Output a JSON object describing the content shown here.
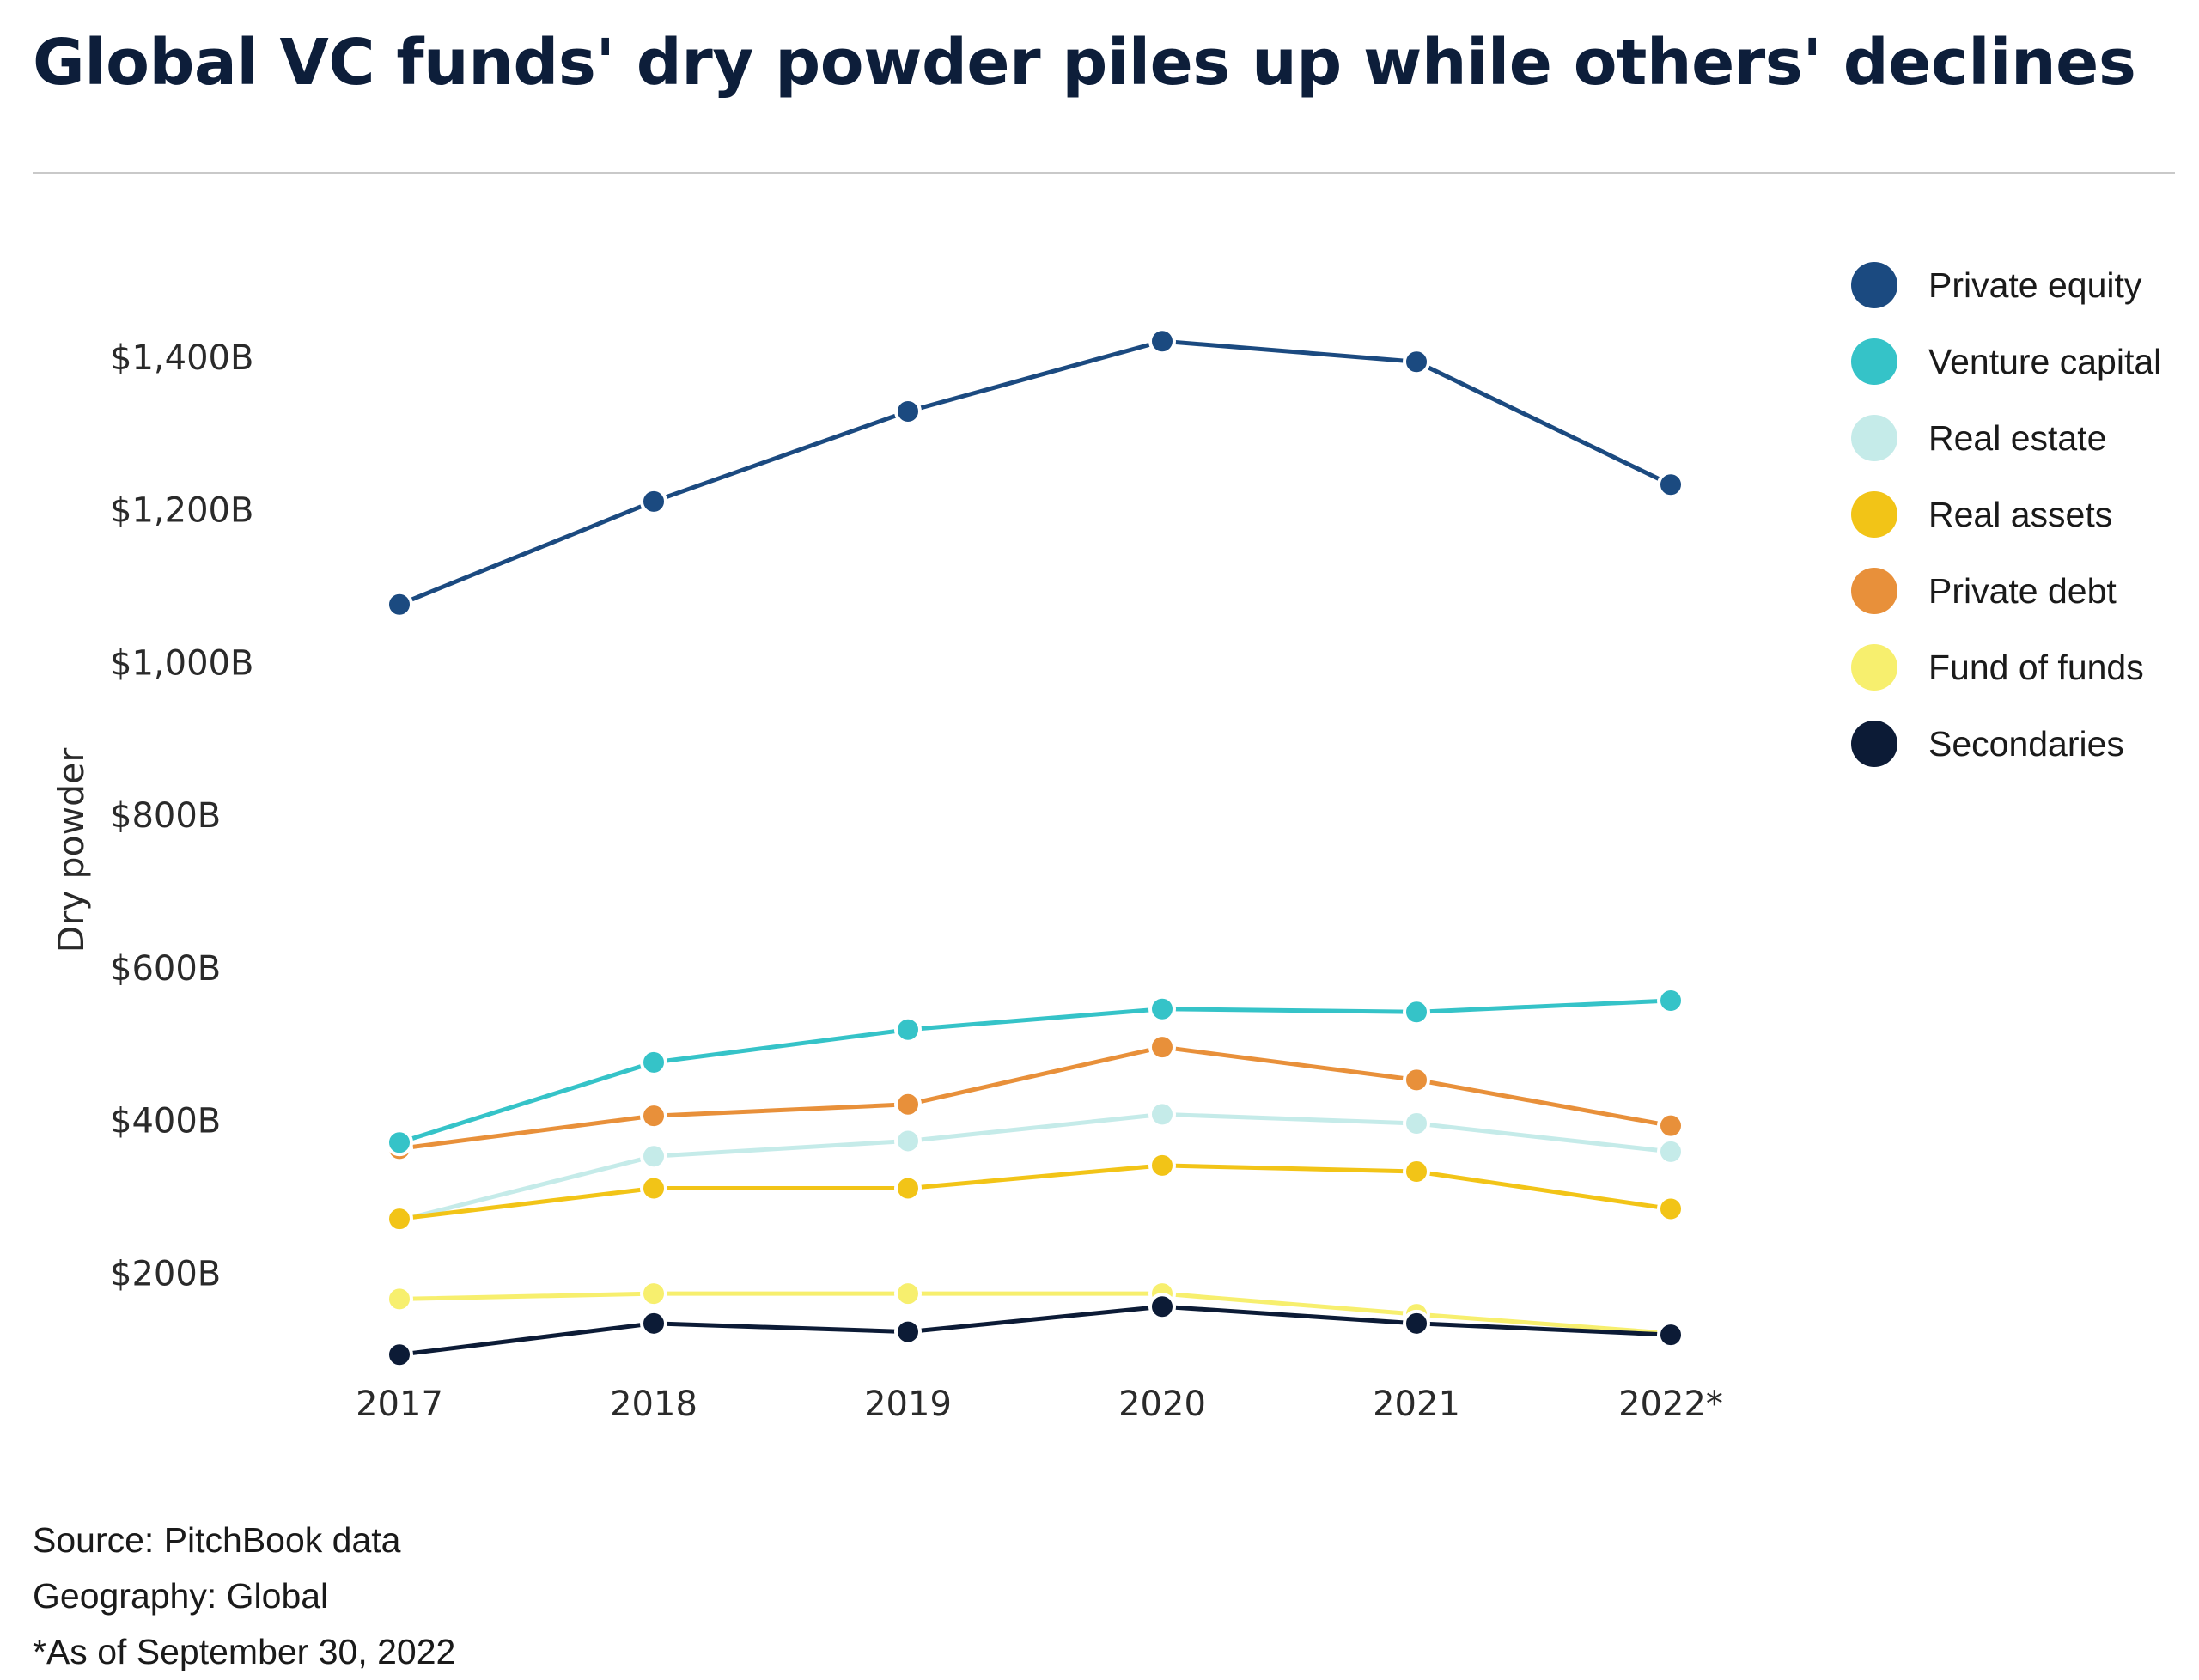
{
  "title": "Global VC funds' dry powder piles up while others' declines",
  "footer": {
    "source": "Source: PitchBook data",
    "geography": "Geography: Global",
    "note": "*As of September 30, 2022"
  },
  "chart_data": {
    "type": "line",
    "title": "Global VC funds' dry powder piles up while others' declines",
    "xlabel": "",
    "ylabel": "Dry powder",
    "categories": [
      "2017",
      "2018",
      "2019",
      "2020",
      "2021",
      "2022*"
    ],
    "y_ticks": [
      200,
      400,
      600,
      800,
      1000,
      1200,
      1400
    ],
    "y_tick_labels": [
      "$200B",
      "$400B",
      "$600B",
      "$800B",
      "$1,000B",
      "$1,200B",
      "$1,400B"
    ],
    "ylim": [
      0,
      1600
    ],
    "grid": false,
    "legend_position": "top-right",
    "series": [
      {
        "name": "Fund of funds",
        "color": "#f7ef6e",
        "values": [
          165,
          172,
          172,
          172,
          145,
          120
        ]
      },
      {
        "name": "Secondaries",
        "color": "#0c1b36",
        "values": [
          92,
          133,
          122,
          155,
          133,
          118
        ]
      },
      {
        "name": "Real estate",
        "color": "#c5ebe9",
        "values": [
          268,
          352,
          372,
          407,
          395,
          358
        ]
      },
      {
        "name": "Real assets",
        "color": "#f2c417",
        "values": [
          270,
          310,
          310,
          340,
          332,
          283
        ]
      },
      {
        "name": "Private debt",
        "color": "#e8903a",
        "values": [
          362,
          405,
          420,
          495,
          452,
          392
        ]
      },
      {
        "name": "Venture capital",
        "color": "#35c3c8",
        "values": [
          370,
          475,
          518,
          545,
          541,
          556
        ]
      },
      {
        "name": "Private equity",
        "color": "#1b4a80",
        "values": [
          1075,
          1210,
          1328,
          1420,
          1393,
          1232
        ]
      }
    ],
    "legend": [
      {
        "name": "Private equity",
        "color": "#1b4a80"
      },
      {
        "name": "Venture capital",
        "color": "#35c3c8"
      },
      {
        "name": "Real estate",
        "color": "#c5ebe9"
      },
      {
        "name": "Real assets",
        "color": "#f2c417"
      },
      {
        "name": "Private debt",
        "color": "#e8903a"
      },
      {
        "name": "Fund of funds",
        "color": "#f7ef6e"
      },
      {
        "name": "Secondaries",
        "color": "#0c1b36"
      }
    ]
  }
}
